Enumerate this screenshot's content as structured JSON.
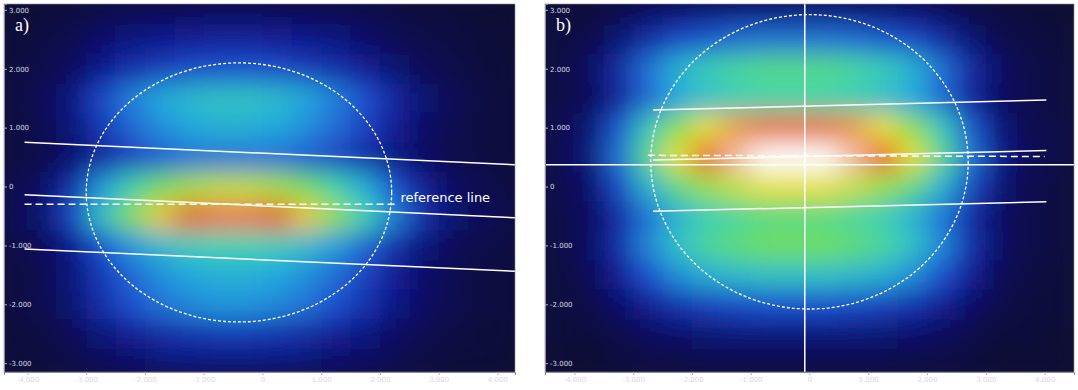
{
  "chart_data": [
    {
      "type": "heatmap",
      "title": "a)",
      "xlim": [
        -4.4,
        4.3
      ],
      "ylim": [
        -3.15,
        3.1
      ],
      "xticks": [
        {
          "value": -4,
          "label": "-4.000"
        },
        {
          "value": -3,
          "label": "-3.000"
        },
        {
          "value": -2,
          "label": "-2.000"
        },
        {
          "value": -1,
          "label": "-1.000"
        },
        0,
        {
          "value": 1,
          "label": "1.000"
        },
        {
          "value": 2,
          "label": "2.000"
        },
        {
          "value": 3,
          "label": "3.000"
        },
        {
          "value": 4,
          "label": "4.000"
        }
      ],
      "yticks": [
        {
          "value": 3,
          "label": "3.000"
        },
        {
          "value": 2,
          "label": "2.000"
        },
        {
          "value": 1,
          "label": "1.000"
        },
        0,
        {
          "value": -1,
          "label": "-1.000"
        },
        {
          "value": -2,
          "label": "-2.000"
        },
        {
          "value": -3,
          "label": "-3.000"
        }
      ],
      "clim": [
        0,
        10
      ],
      "x": [
        -4.25,
        -3.75,
        -3.25,
        -2.75,
        -2.25,
        -1.75,
        -1.25,
        -0.75,
        -0.25,
        0.25,
        0.75,
        1.25,
        1.75,
        2.25,
        2.75,
        3.25,
        3.75,
        4.25
      ],
      "y": [
        3,
        2.5,
        2,
        1.5,
        1,
        0.5,
        0,
        -0.5,
        -1,
        -1.5,
        -2,
        -2.5,
        -3
      ],
      "values": [
        [
          0,
          0.1,
          0.1,
          0.3,
          0.4,
          0.4,
          0.5,
          0.5,
          0.5,
          0.5,
          0.4,
          0.4,
          0.3,
          0.2,
          0.1,
          0.1,
          0,
          0
        ],
        [
          0.1,
          0.2,
          0.4,
          0.8,
          1.1,
          1.3,
          1.4,
          1.5,
          1.5,
          1.4,
          1.3,
          1.1,
          0.8,
          0.5,
          0.3,
          0.2,
          0.1,
          0
        ],
        [
          0.1,
          0.3,
          0.6,
          1.3,
          1.8,
          2.1,
          2.4,
          2.5,
          2.5,
          2.4,
          2.1,
          1.8,
          1.4,
          0.9,
          0.5,
          0.3,
          0.1,
          0.1
        ],
        [
          0.2,
          0.5,
          1.1,
          2.3,
          3.2,
          3.8,
          4.3,
          4.5,
          4.5,
          4.3,
          3.8,
          3.2,
          2.5,
          1.6,
          0.9,
          0.5,
          0.2,
          0.1
        ],
        [
          0.2,
          0.4,
          1,
          2,
          2.8,
          3.4,
          3.8,
          4,
          4,
          3.8,
          3.4,
          2.9,
          2.2,
          1.4,
          0.8,
          0.4,
          0.2,
          0.1
        ],
        [
          0.2,
          0.3,
          0.8,
          1.5,
          2.1,
          2.6,
          2.9,
          3,
          3,
          2.9,
          2.6,
          2.2,
          1.7,
          1.1,
          0.6,
          0.3,
          0.2,
          0.1
        ],
        [
          0.4,
          0.7,
          1.8,
          3.5,
          4.9,
          6,
          6.7,
          7,
          7,
          6.7,
          6,
          5,
          3.9,
          2.5,
          1.4,
          0.7,
          0.4,
          0.2
        ],
        [
          0.5,
          0.9,
          2.3,
          4.5,
          6.3,
          7.7,
          8.6,
          9,
          9,
          8.6,
          7.7,
          6.5,
          5,
          3.2,
          1.8,
          0.9,
          0.5,
          0.3
        ],
        [
          0.3,
          0.5,
          1.3,
          2.5,
          3.5,
          4.3,
          4.8,
          5,
          5,
          4.8,
          4.3,
          3.6,
          2.8,
          1.8,
          1,
          0.5,
          0.3,
          0.2
        ],
        [
          0.2,
          0.4,
          1,
          2,
          2.8,
          3.4,
          3.8,
          4,
          4,
          3.8,
          3.4,
          2.9,
          2.2,
          1.4,
          0.8,
          0.4,
          0.2,
          0.1
        ],
        [
          0.2,
          0.4,
          0.9,
          1.8,
          2.5,
          3,
          3.3,
          3.5,
          3.5,
          3.3,
          3,
          2.5,
          1.9,
          1.2,
          0.7,
          0.4,
          0.2,
          0.1
        ],
        [
          0.1,
          0.2,
          0.5,
          1,
          1.4,
          1.7,
          1.9,
          2,
          2,
          1.9,
          1.7,
          1.4,
          1.1,
          0.7,
          0.4,
          0.2,
          0.1,
          0.1
        ],
        [
          0.1,
          0.1,
          0.3,
          0.5,
          0.7,
          0.9,
          1,
          1,
          1,
          1,
          0.9,
          0.7,
          0.6,
          0.4,
          0.2,
          0.1,
          0.1,
          0
        ]
      ],
      "lines": [
        {
          "x": [
            -4.05,
            4.3
          ],
          "y": [
            0.75,
            0.37
          ],
          "line_style": "solid"
        },
        {
          "x": [
            -4.05,
            4.3
          ],
          "y": [
            -0.14,
            -0.53
          ],
          "line_style": "solid"
        },
        {
          "x": [
            -4.05,
            2.25
          ],
          "y": [
            -0.3,
            -0.3
          ],
          "line_style": "dashed"
        },
        {
          "x": [
            -4.05,
            4.3
          ],
          "y": [
            -1.06,
            -1.44
          ],
          "line_style": "solid"
        }
      ],
      "circle": {
        "cx": -0.4,
        "cy": -0.1,
        "rx": 2.6,
        "ry": 2.2,
        "line_style": "dotted"
      },
      "annotations": [
        {
          "text": "reference line",
          "x": 2.35,
          "y": -0.2
        }
      ]
    },
    {
      "type": "heatmap",
      "title": "b)",
      "xlim": [
        -4.5,
        4.5
      ],
      "ylim": [
        -3.15,
        3.1
      ],
      "xticks": [
        {
          "value": -4,
          "label": "-4.000"
        },
        {
          "value": -3,
          "label": "-3.000"
        },
        {
          "value": -2,
          "label": "-2.000"
        },
        {
          "value": -1,
          "label": "-1.000"
        },
        0,
        {
          "value": 1,
          "label": "1.000"
        },
        {
          "value": 2,
          "label": "2.000"
        },
        {
          "value": 3,
          "label": "3.000"
        },
        {
          "value": 4,
          "label": "4.000"
        }
      ],
      "yticks": [
        {
          "value": 3,
          "label": "3.000"
        },
        {
          "value": 2,
          "label": "2.000"
        },
        {
          "value": 1,
          "label": "1.000"
        },
        0,
        {
          "value": -1,
          "label": "-1.000"
        },
        {
          "value": -2,
          "label": "-2.000"
        },
        {
          "value": -3,
          "label": "-3.000"
        }
      ],
      "clim": [
        0,
        10
      ],
      "x": [
        -4.25,
        -3.75,
        -3.25,
        -2.75,
        -2.25,
        -1.75,
        -1.25,
        -0.75,
        -0.25,
        0.25,
        0.75,
        1.25,
        1.75,
        2.25,
        2.75,
        3.25,
        3.75,
        4.25
      ],
      "y": [
        3,
        2.5,
        2,
        1.5,
        1,
        0.5,
        0,
        -0.5,
        -1,
        -1.5,
        -2,
        -2.5,
        -3
      ],
      "values": [
        [
          0.1,
          0.1,
          0.3,
          0.6,
          0.8,
          0.9,
          1,
          1,
          1,
          1,
          1,
          0.9,
          0.8,
          0.6,
          0.3,
          0.1,
          0.1,
          0
        ],
        [
          0.2,
          0.3,
          0.9,
          1.7,
          2.3,
          2.6,
          2.9,
          3,
          3,
          3,
          2.9,
          2.6,
          2.3,
          1.7,
          0.9,
          0.4,
          0.2,
          0.1
        ],
        [
          0.3,
          0.6,
          1.7,
          3,
          4.1,
          4.8,
          5.2,
          5.5,
          5.5,
          5.5,
          5.2,
          4.8,
          4.1,
          3,
          1.7,
          0.7,
          0.3,
          0.2
        ],
        [
          0.3,
          0.5,
          1.5,
          2.8,
          3.8,
          4.4,
          4.8,
          5,
          5,
          5,
          4.8,
          4.4,
          3.8,
          2.8,
          1.5,
          0.6,
          0.3,
          0.2
        ],
        [
          0.4,
          0.9,
          2.6,
          4.7,
          6.4,
          7.5,
          8.1,
          8.5,
          8.5,
          8.5,
          8.1,
          7.5,
          6.4,
          4.7,
          2.6,
          1,
          0.4,
          0.3
        ],
        [
          0.5,
          1,
          3,
          5.5,
          7.5,
          8.8,
          9.5,
          10,
          10,
          10,
          9.5,
          8.8,
          7.5,
          5.5,
          3,
          1.2,
          0.5,
          0.3
        ],
        [
          0.4,
          0.8,
          2.3,
          4.1,
          5.6,
          6.6,
          7.1,
          7.5,
          7.5,
          7.5,
          7.1,
          6.6,
          5.6,
          4.1,
          2.3,
          0.9,
          0.4,
          0.2
        ],
        [
          0.3,
          0.6,
          1.7,
          3,
          4.1,
          4.8,
          5.2,
          5.5,
          5.5,
          5.5,
          5.2,
          4.8,
          4.1,
          3,
          1.7,
          0.7,
          0.3,
          0.2
        ],
        [
          0.3,
          0.6,
          1.8,
          3.3,
          4.5,
          5.3,
          5.7,
          6,
          6,
          6,
          5.7,
          5.3,
          4.5,
          3.3,
          1.8,
          0.7,
          0.3,
          0.2
        ],
        [
          0.2,
          0.5,
          1.4,
          2.5,
          3.4,
          4,
          4.3,
          4.5,
          4.5,
          4.5,
          4.3,
          4,
          3.4,
          2.5,
          1.4,
          0.5,
          0.2,
          0.1
        ],
        [
          0.1,
          0.3,
          0.8,
          1.4,
          1.9,
          2.2,
          2.4,
          2.5,
          2.5,
          2.5,
          2.4,
          2.2,
          1.9,
          1.4,
          0.8,
          0.3,
          0.1,
          0.1
        ],
        [
          0.1,
          0.1,
          0.3,
          0.6,
          0.8,
          0.9,
          1,
          1,
          1,
          1,
          1,
          0.9,
          0.8,
          0.6,
          0.3,
          0.1,
          0.1,
          0
        ],
        [
          0,
          0,
          0.1,
          0.2,
          0.2,
          0.3,
          0.3,
          0.3,
          0.3,
          0.3,
          0.3,
          0.3,
          0.2,
          0.2,
          0.1,
          0,
          0,
          0
        ]
      ],
      "lines": [
        {
          "x": [
            -2.66,
            4.03
          ],
          "y": [
            1.3,
            1.47
          ],
          "line_style": "solid"
        },
        {
          "x": [
            -2.66,
            4.03
          ],
          "y": [
            0.45,
            0.61
          ],
          "line_style": "solid"
        },
        {
          "x": [
            -2.75,
            4.0
          ],
          "y": [
            0.53,
            0.51
          ],
          "line_style": "dashed"
        },
        {
          "x": [
            -2.66,
            4.03
          ],
          "y": [
            -0.42,
            -0.26
          ],
          "line_style": "solid"
        },
        {
          "x": [
            -4.6,
            4.6
          ],
          "y": [
            0.37,
            0.37
          ],
          "line_style": "solid"
        },
        {
          "x": [
            -0.08,
            -0.08
          ],
          "y": [
            -3.2,
            3.2
          ],
          "line_style": "solid"
        }
      ],
      "circle": {
        "cx": 0.0,
        "cy": 0.42,
        "rx": 2.7,
        "ry": 2.5,
        "line_style": "dotted"
      }
    }
  ]
}
